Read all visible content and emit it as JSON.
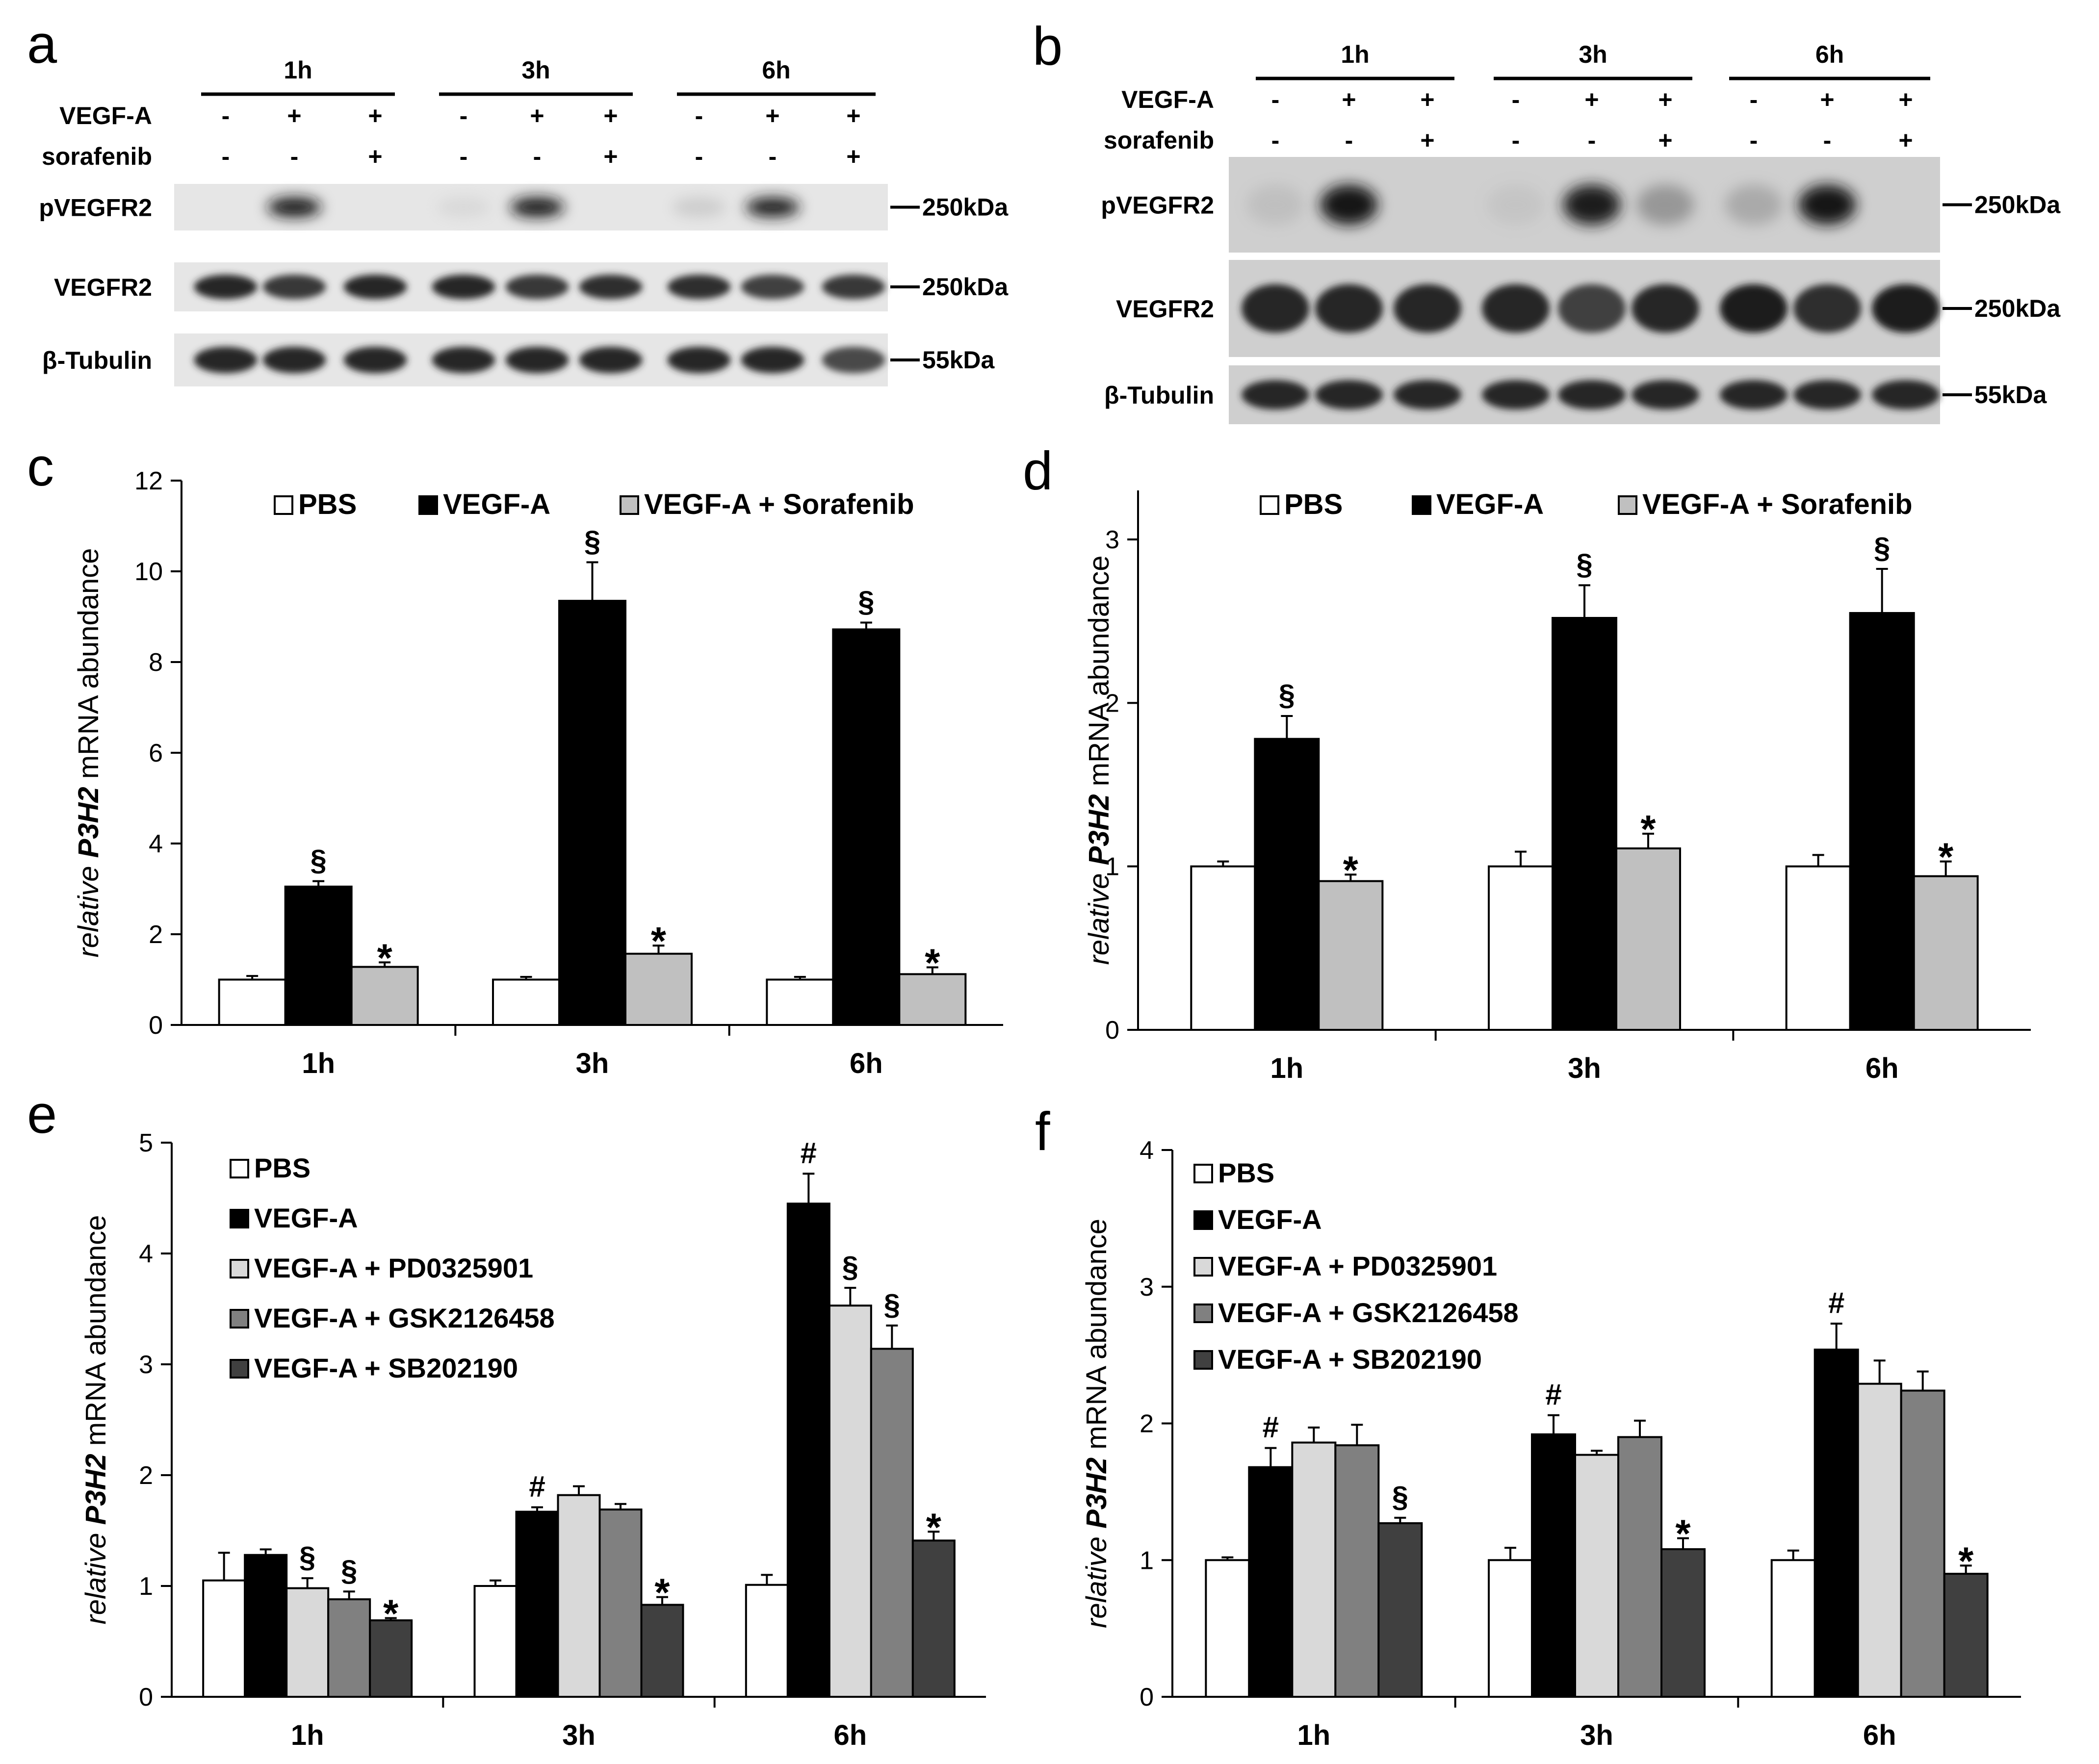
{
  "figure": {
    "panel_letters": [
      "a",
      "b",
      "c",
      "d",
      "e",
      "f"
    ]
  },
  "blots": [
    {
      "panel": "a",
      "timepoints": [
        "1h",
        "3h",
        "6h"
      ],
      "rows": [
        {
          "label": "VEGF-A",
          "signs": [
            "-",
            "+",
            "+",
            "-",
            "+",
            "+",
            "-",
            "+",
            "+"
          ]
        },
        {
          "label": "sorafenib",
          "signs": [
            "-",
            "-",
            "+",
            "-",
            "-",
            "+",
            "-",
            "-",
            "+"
          ]
        }
      ],
      "bands": [
        {
          "label": "pVEGFR2",
          "marker": "250kDa",
          "intensity": [
            0.0,
            1.0,
            0.0,
            0.05,
            1.0,
            0.0,
            0.15,
            0.95,
            0.0
          ]
        },
        {
          "label": "VEGFR2",
          "marker": "250kDa",
          "intensity": [
            0.9,
            0.8,
            0.9,
            0.9,
            0.8,
            0.85,
            0.85,
            0.75,
            0.8
          ]
        },
        {
          "label": "β-Tubulin",
          "marker": "55kDa",
          "intensity": [
            0.9,
            0.9,
            0.9,
            0.9,
            0.9,
            0.9,
            0.9,
            0.9,
            0.7
          ]
        }
      ]
    },
    {
      "panel": "b",
      "timepoints": [
        "1h",
        "3h",
        "6h"
      ],
      "rows": [
        {
          "label": "VEGF-A",
          "signs": [
            "-",
            "+",
            "+",
            "-",
            "+",
            "+",
            "-",
            "+",
            "+"
          ]
        },
        {
          "label": "sorafenib",
          "signs": [
            "-",
            "-",
            "+",
            "-",
            "-",
            "+",
            "-",
            "-",
            "+"
          ]
        }
      ],
      "bands": [
        {
          "label": "pVEGFR2",
          "marker": "250kDa",
          "intensity": [
            0.15,
            1.0,
            0.0,
            0.1,
            0.95,
            0.4,
            0.3,
            1.0,
            0.0
          ]
        },
        {
          "label": "VEGFR2",
          "marker": "250kDa",
          "intensity": [
            0.9,
            0.9,
            0.9,
            0.9,
            0.75,
            0.9,
            0.95,
            0.85,
            0.95
          ]
        },
        {
          "label": "β-Tubulin",
          "marker": "55kDa",
          "intensity": [
            0.9,
            0.9,
            0.9,
            0.9,
            0.9,
            0.9,
            0.9,
            0.9,
            0.9
          ]
        }
      ]
    }
  ],
  "chart_data": [
    {
      "panel": "c",
      "type": "bar",
      "categories": [
        "1h",
        "3h",
        "6h"
      ],
      "ylabel_italic": "relative",
      "ylabel_gene": "P3H2",
      "ylabel_rest": "mRNA abundance",
      "ylim": [
        0,
        12
      ],
      "yticks": [
        0,
        2,
        4,
        6,
        8,
        10,
        12
      ],
      "legend_position": "top",
      "series": [
        {
          "name": "PBS",
          "color": "#ffffff",
          "values": [
            1.0,
            1.0,
            1.0
          ],
          "errors": [
            0.08,
            0.06,
            0.06
          ],
          "marks": [
            "",
            "",
            ""
          ]
        },
        {
          "name": "VEGF-A",
          "color": "#000000",
          "values": [
            3.05,
            9.35,
            8.72
          ],
          "errors": [
            0.12,
            0.85,
            0.15
          ],
          "marks": [
            "§",
            "§",
            "§"
          ]
        },
        {
          "name": "VEGF-A + Sorafenib",
          "color": "#c0c0c0",
          "values": [
            1.28,
            1.57,
            1.12
          ],
          "errors": [
            0.1,
            0.18,
            0.15
          ],
          "marks": [
            "*",
            "*",
            "*"
          ]
        }
      ]
    },
    {
      "panel": "d",
      "type": "bar",
      "categories": [
        "1h",
        "3h",
        "6h"
      ],
      "ylabel_italic": "relative",
      "ylabel_gene": "P3H2",
      "ylabel_rest": "mRNA abundance",
      "ylim": [
        0,
        3.3
      ],
      "yticks": [
        0,
        1,
        2,
        3
      ],
      "legend_position": "top",
      "series": [
        {
          "name": "PBS",
          "color": "#ffffff",
          "values": [
            1.0,
            1.0,
            1.0
          ],
          "errors": [
            0.03,
            0.09,
            0.07
          ],
          "marks": [
            "",
            "",
            ""
          ]
        },
        {
          "name": "VEGF-A",
          "color": "#000000",
          "values": [
            1.78,
            2.52,
            2.55
          ],
          "errors": [
            0.14,
            0.2,
            0.27
          ],
          "marks": [
            "§",
            "§",
            "§"
          ]
        },
        {
          "name": "VEGF-A  + Sorafenib",
          "color": "#c0c0c0",
          "values": [
            0.91,
            1.11,
            0.94
          ],
          "errors": [
            0.04,
            0.09,
            0.09
          ],
          "marks": [
            "*",
            "*",
            "*"
          ]
        }
      ]
    },
    {
      "panel": "e",
      "type": "bar",
      "categories": [
        "1h",
        "3h",
        "6h"
      ],
      "ylabel_italic": "relative",
      "ylabel_gene": "P3H2",
      "ylabel_rest": "mRNA abundance",
      "ylim": [
        0,
        5
      ],
      "yticks": [
        0,
        1,
        2,
        3,
        4,
        5
      ],
      "legend_position": "top-left",
      "series": [
        {
          "name": "PBS",
          "color": "#ffffff",
          "values": [
            1.05,
            1.0,
            1.01
          ],
          "errors": [
            0.25,
            0.05,
            0.09
          ],
          "marks": [
            "",
            "",
            ""
          ]
        },
        {
          "name": "VEGF-A",
          "color": "#000000",
          "values": [
            1.28,
            1.67,
            4.45
          ],
          "errors": [
            0.05,
            0.04,
            0.27
          ],
          "marks": [
            "",
            "#",
            "#"
          ]
        },
        {
          "name": "VEGF-A + PD0325901",
          "color": "#d9d9d9",
          "values": [
            0.98,
            1.82,
            3.53
          ],
          "errors": [
            0.09,
            0.08,
            0.16
          ],
          "marks": [
            "§",
            "",
            "§"
          ]
        },
        {
          "name": "VEGF-A + GSK2126458",
          "color": "#808080",
          "values": [
            0.88,
            1.69,
            3.14
          ],
          "errors": [
            0.07,
            0.05,
            0.21
          ],
          "marks": [
            "§",
            "",
            "§"
          ]
        },
        {
          "name": "VEGF-A + SB202190",
          "color": "#404040",
          "values": [
            0.69,
            0.83,
            1.41
          ],
          "errors": [
            0.02,
            0.07,
            0.08
          ],
          "marks": [
            "*",
            "*",
            "*"
          ]
        }
      ]
    },
    {
      "panel": "f",
      "type": "bar",
      "categories": [
        "1h",
        "3h",
        "6h"
      ],
      "ylabel_italic": "relative",
      "ylabel_gene": "P3H2",
      "ylabel_rest": "mRNA abundance",
      "ylim": [
        0,
        4
      ],
      "yticks": [
        0,
        1,
        2,
        3,
        4
      ],
      "legend_position": "top-left",
      "series": [
        {
          "name": "PBS",
          "color": "#ffffff",
          "values": [
            1.0,
            1.0,
            1.0
          ],
          "errors": [
            0.02,
            0.09,
            0.07
          ],
          "marks": [
            "",
            "",
            ""
          ]
        },
        {
          "name": "VEGF-A",
          "color": "#000000",
          "values": [
            1.68,
            1.92,
            2.54
          ],
          "errors": [
            0.14,
            0.14,
            0.19
          ],
          "marks": [
            "#",
            "#",
            "#"
          ]
        },
        {
          "name": "VEGF-A + PD0325901",
          "color": "#d9d9d9",
          "values": [
            1.86,
            1.77,
            2.29
          ],
          "errors": [
            0.11,
            0.03,
            0.17
          ],
          "marks": [
            "",
            "",
            ""
          ]
        },
        {
          "name": "VEGF-A + GSK2126458",
          "color": "#808080",
          "values": [
            1.84,
            1.9,
            2.24
          ],
          "errors": [
            0.15,
            0.12,
            0.14
          ],
          "marks": [
            "",
            "",
            ""
          ]
        },
        {
          "name": "VEGF-A + SB202190",
          "color": "#404040",
          "values": [
            1.27,
            1.08,
            0.9
          ],
          "errors": [
            0.04,
            0.08,
            0.06
          ],
          "marks": [
            "§",
            "*",
            "*"
          ]
        }
      ]
    }
  ]
}
